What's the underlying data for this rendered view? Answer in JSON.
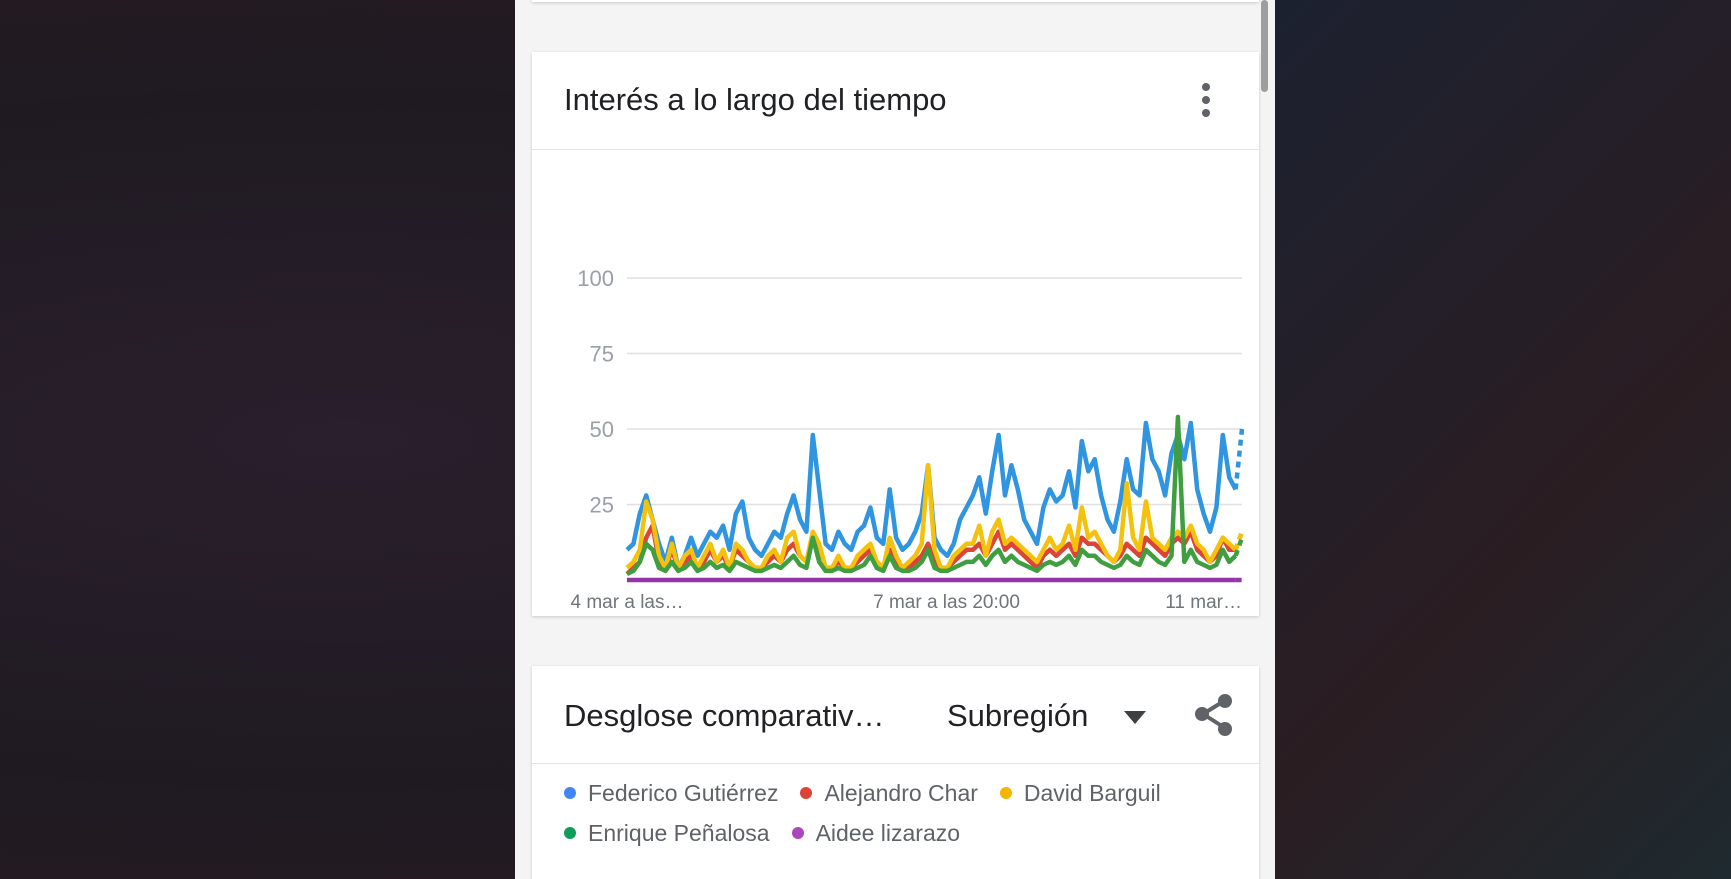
{
  "chart_card": {
    "title": "Interés a lo largo del tiempo"
  },
  "chart_data": {
    "type": "line",
    "title": "Interés a lo largo del tiempo",
    "y_ticks": [
      "100",
      "75",
      "50",
      "25"
    ],
    "ylim": [
      0,
      100
    ],
    "x_tick_labels": [
      "4 mar a las…",
      "7 mar a las 20:00",
      "11 mar…"
    ],
    "grid": true,
    "last_point_partial": true,
    "series": [
      {
        "name": "Federico Gutiérrez",
        "color": "#2f95e0",
        "values": [
          10,
          12,
          22,
          28,
          20,
          12,
          6,
          14,
          4,
          8,
          14,
          8,
          12,
          16,
          14,
          18,
          10,
          22,
          26,
          14,
          10,
          8,
          12,
          16,
          14,
          22,
          28,
          20,
          16,
          48,
          30,
          12,
          10,
          16,
          12,
          10,
          16,
          18,
          24,
          14,
          12,
          30,
          14,
          10,
          12,
          16,
          22,
          38,
          14,
          10,
          8,
          12,
          20,
          24,
          28,
          34,
          22,
          36,
          48,
          28,
          38,
          30,
          20,
          16,
          12,
          24,
          30,
          26,
          28,
          36,
          24,
          46,
          36,
          40,
          28,
          20,
          16,
          26,
          40,
          30,
          28,
          52,
          40,
          36,
          28,
          42,
          48,
          40,
          52,
          30,
          22,
          16,
          24,
          48,
          34,
          30,
          50
        ]
      },
      {
        "name": "Alejandro Char",
        "color": "#db4437",
        "values": [
          2,
          4,
          6,
          14,
          18,
          6,
          4,
          10,
          4,
          6,
          8,
          4,
          6,
          10,
          6,
          8,
          4,
          10,
          8,
          6,
          4,
          4,
          6,
          8,
          6,
          10,
          12,
          8,
          6,
          14,
          10,
          4,
          4,
          6,
          4,
          4,
          6,
          8,
          10,
          6,
          4,
          10,
          6,
          4,
          4,
          6,
          8,
          12,
          6,
          4,
          4,
          6,
          8,
          10,
          10,
          12,
          8,
          12,
          16,
          10,
          12,
          10,
          8,
          6,
          4,
          8,
          10,
          8,
          10,
          12,
          8,
          14,
          12,
          12,
          10,
          8,
          6,
          8,
          12,
          10,
          8,
          14,
          12,
          10,
          8,
          12,
          14,
          12,
          16,
          10,
          8,
          6,
          8,
          14,
          10,
          10,
          16
        ]
      },
      {
        "name": "David Barguil",
        "color": "#f4c20d",
        "values": [
          4,
          6,
          10,
          26,
          20,
          8,
          4,
          12,
          4,
          8,
          10,
          4,
          8,
          12,
          6,
          10,
          4,
          12,
          10,
          6,
          4,
          4,
          8,
          10,
          6,
          14,
          16,
          8,
          6,
          16,
          12,
          4,
          4,
          8,
          4,
          4,
          8,
          10,
          12,
          6,
          4,
          14,
          8,
          4,
          6,
          8,
          12,
          38,
          10,
          4,
          4,
          8,
          10,
          12,
          12,
          18,
          8,
          16,
          20,
          12,
          14,
          12,
          10,
          8,
          6,
          10,
          14,
          10,
          12,
          18,
          10,
          24,
          14,
          16,
          12,
          8,
          6,
          10,
          32,
          14,
          10,
          26,
          14,
          12,
          10,
          14,
          16,
          14,
          18,
          12,
          10,
          6,
          10,
          14,
          12,
          10,
          16
        ]
      },
      {
        "name": "Enrique Peñalosa",
        "color": "#3f9e3f",
        "values": [
          2,
          3,
          6,
          12,
          10,
          4,
          3,
          6,
          3,
          4,
          6,
          3,
          4,
          6,
          4,
          5,
          3,
          6,
          5,
          4,
          3,
          3,
          4,
          5,
          4,
          6,
          8,
          5,
          4,
          14,
          6,
          3,
          3,
          4,
          3,
          3,
          4,
          5,
          8,
          4,
          3,
          8,
          4,
          3,
          3,
          4,
          6,
          10,
          4,
          3,
          3,
          4,
          5,
          6,
          6,
          8,
          5,
          8,
          10,
          6,
          8,
          6,
          5,
          4,
          3,
          5,
          6,
          5,
          6,
          8,
          5,
          10,
          8,
          8,
          6,
          5,
          4,
          5,
          8,
          6,
          5,
          10,
          8,
          6,
          5,
          8,
          54,
          6,
          10,
          6,
          5,
          4,
          5,
          10,
          6,
          8,
          14
        ]
      },
      {
        "name": "Aidee lizarazo",
        "color": "#9334a8",
        "values": [
          0,
          0,
          0,
          0,
          0,
          0,
          0,
          0,
          0,
          0,
          0,
          0,
          0,
          0,
          0,
          0,
          0,
          0,
          0,
          0,
          0,
          0,
          0,
          0,
          0,
          0,
          0,
          0,
          0,
          0,
          0,
          0,
          0,
          0,
          0,
          0,
          0,
          0,
          0,
          0,
          0,
          0,
          0,
          0,
          0,
          0,
          0,
          0,
          0,
          0,
          0,
          0,
          0,
          0,
          0,
          0,
          0,
          0,
          0,
          0,
          0,
          0,
          0,
          0,
          0,
          0,
          0,
          0,
          0,
          0,
          0,
          0,
          0,
          0,
          0,
          0,
          0,
          0,
          0,
          0,
          0,
          0,
          0,
          0,
          0,
          0,
          0,
          0,
          0,
          0,
          0,
          0,
          0,
          0,
          0,
          0,
          0
        ]
      }
    ]
  },
  "breakdown_card": {
    "title": "Desglose comparativ…",
    "region_selector": "Subregión",
    "legend_rows": [
      [
        {
          "label": "Federico Gutiérrez",
          "color": "#4285f4"
        },
        {
          "label": "Alejandro Char",
          "color": "#db4437"
        },
        {
          "label": "David Barguil",
          "color": "#f4b400"
        }
      ],
      [
        {
          "label": "Enrique Peñalosa",
          "color": "#0f9d58"
        },
        {
          "label": "Aidee lizarazo",
          "color": "#ab47bc"
        }
      ]
    ]
  },
  "icons": {
    "menu": "more-vert-icon",
    "dropdown": "arrow-drop-down-icon",
    "share": "share-icon"
  }
}
